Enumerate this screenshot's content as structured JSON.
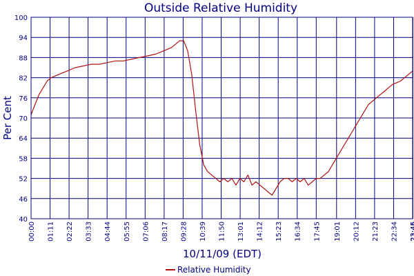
{
  "chart_data": {
    "type": "line",
    "title": "Outside Relative Humidity",
    "xlabel": "10/11/09 (EDT)",
    "ylabel": "Per Cent",
    "ylim": [
      40,
      100
    ],
    "yticks": [
      "40",
      "46",
      "52",
      "58",
      "64",
      "70",
      "76",
      "82",
      "88",
      "94",
      "100"
    ],
    "xlim": [
      "00:00",
      "23:45"
    ],
    "xticks": [
      "00:00",
      "01:11",
      "02:22",
      "03:33",
      "04:44",
      "05:55",
      "07:06",
      "08:17",
      "09:28",
      "10:39",
      "11:50",
      "13:01",
      "14:12",
      "15:23",
      "16:34",
      "17:45",
      "19:01",
      "20:12",
      "21:23",
      "22:34",
      "23:45",
      "23:46"
    ],
    "grid": true,
    "legend_position": "bottom-center",
    "series": [
      {
        "name": "Relative Humidity",
        "color": "#b01010",
        "x": [
          "00:00",
          "00:15",
          "00:30",
          "00:45",
          "01:00",
          "01:15",
          "01:45",
          "02:15",
          "02:45",
          "03:15",
          "03:45",
          "04:15",
          "04:45",
          "05:15",
          "05:45",
          "06:15",
          "06:45",
          "07:15",
          "07:45",
          "08:15",
          "08:45",
          "09:00",
          "09:15",
          "09:30",
          "09:45",
          "10:00",
          "10:15",
          "10:30",
          "10:45",
          "11:00",
          "11:15",
          "11:30",
          "11:45",
          "12:00",
          "12:15",
          "12:30",
          "12:45",
          "13:00",
          "13:15",
          "13:30",
          "13:45",
          "14:00",
          "14:15",
          "14:30",
          "14:45",
          "15:00",
          "15:15",
          "15:30",
          "15:45",
          "16:00",
          "16:15",
          "16:30",
          "16:45",
          "17:00",
          "17:15",
          "17:30",
          "17:45",
          "18:00",
          "18:15",
          "18:30",
          "18:45",
          "19:00",
          "19:15",
          "19:30",
          "19:45",
          "20:00",
          "20:15",
          "20:30",
          "20:45",
          "21:00",
          "21:15",
          "21:30",
          "21:45",
          "22:00",
          "22:15",
          "22:30",
          "22:45",
          "23:00",
          "23:15",
          "23:30",
          "23:45"
        ],
        "values": [
          71,
          74,
          77,
          79,
          81,
          82,
          83,
          84,
          85,
          85.5,
          86,
          86,
          86.5,
          87,
          87,
          87.5,
          88,
          88.5,
          89,
          90,
          91,
          92,
          93,
          93,
          90,
          83,
          72,
          62,
          56,
          54,
          53,
          52,
          51,
          52,
          51,
          52,
          50,
          52,
          51,
          53,
          50,
          51,
          50,
          49,
          48,
          47,
          49,
          51,
          52,
          52,
          51,
          52,
          51,
          52,
          50,
          51,
          52,
          52,
          53,
          54,
          56,
          58,
          60,
          62,
          64,
          66,
          68,
          70,
          72,
          74,
          75,
          76,
          77,
          78,
          79,
          80,
          80.5,
          81,
          82,
          83,
          84
        ]
      }
    ]
  }
}
